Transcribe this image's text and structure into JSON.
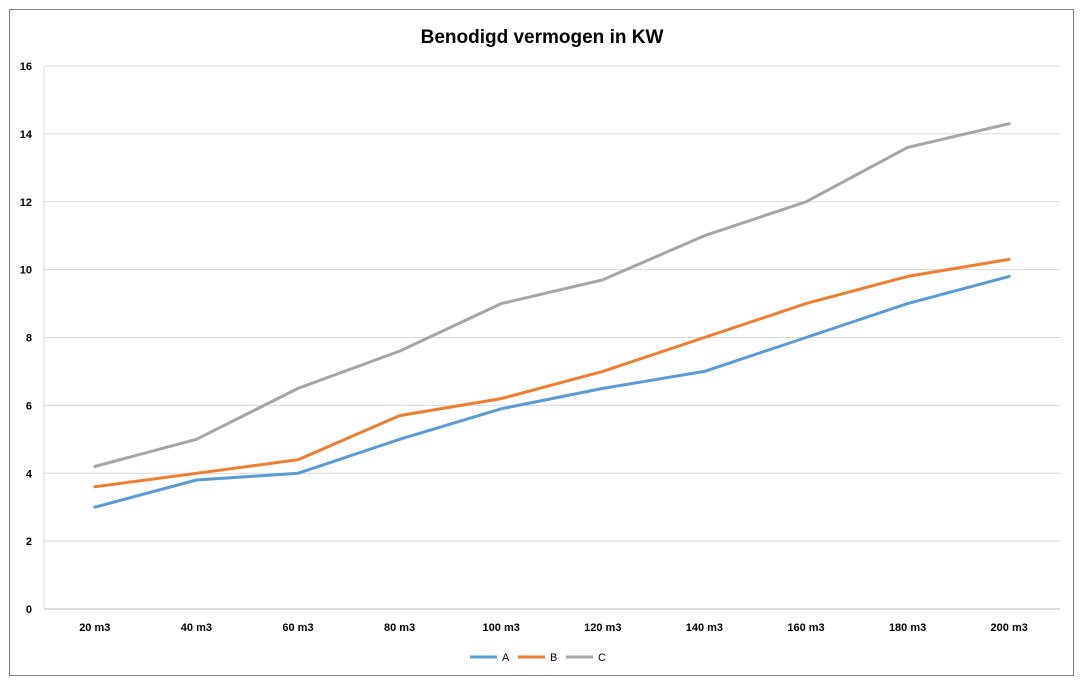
{
  "chart_data": {
    "type": "line",
    "title": "Benodigd vermogen in KW",
    "xlabel": "",
    "ylabel": "",
    "categories": [
      "20 m3",
      "40 m3",
      "60 m3",
      "80 m3",
      "100 m3",
      "120 m3",
      "140 m3",
      "160 m3",
      "180 m3",
      "200 m3"
    ],
    "ylim": [
      0,
      16
    ],
    "yticks": [
      "0",
      "2",
      "4",
      "6",
      "8",
      "10",
      "12",
      "14",
      "16"
    ],
    "grid": true,
    "legend_position": "bottom",
    "series": [
      {
        "name": "A",
        "color": "#5b9bd5",
        "values": [
          3.0,
          3.8,
          4.0,
          5.0,
          5.9,
          6.5,
          7.0,
          8.0,
          9.0,
          9.8
        ]
      },
      {
        "name": "B",
        "color": "#ed7d31",
        "values": [
          3.6,
          4.0,
          4.4,
          5.7,
          6.2,
          7.0,
          8.0,
          9.0,
          9.8,
          10.3
        ]
      },
      {
        "name": "C",
        "color": "#a5a5a5",
        "values": [
          4.2,
          5.0,
          6.5,
          7.6,
          9.0,
          9.7,
          11.0,
          12.0,
          13.6,
          14.3
        ]
      }
    ]
  }
}
